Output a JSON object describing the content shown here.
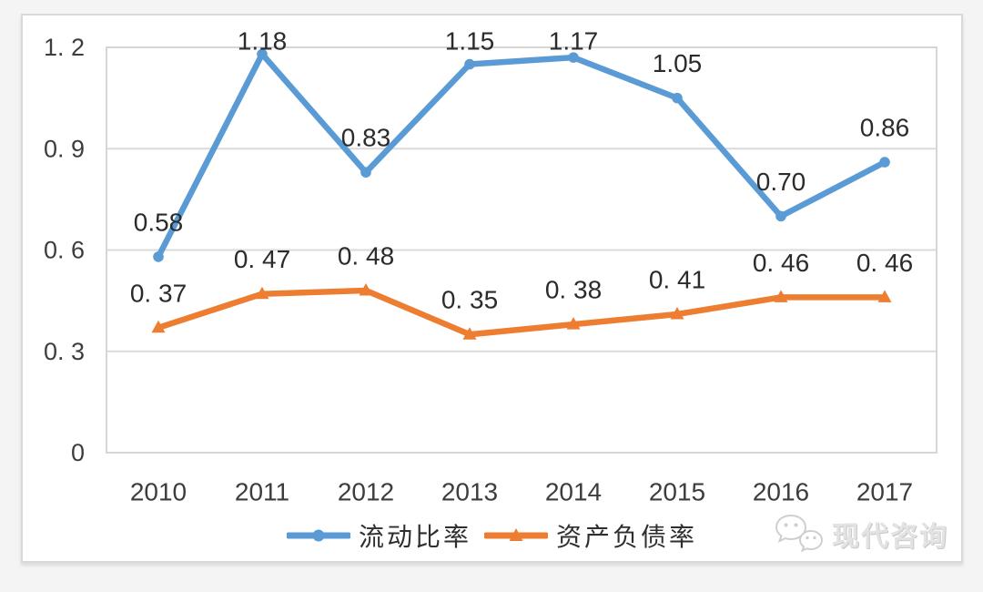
{
  "chart_data": {
    "type": "line",
    "categories": [
      "2010",
      "2011",
      "2012",
      "2013",
      "2014",
      "2015",
      "2016",
      "2017"
    ],
    "series": [
      {
        "name": "流动比率",
        "color": "#5b9bd5",
        "marker": "circle",
        "values": [
          0.58,
          1.18,
          0.83,
          1.15,
          1.17,
          1.05,
          0.7,
          0.86
        ],
        "labels": [
          "0.58",
          "1.18",
          "0.83",
          "1.15",
          "1.17",
          "1.05",
          "0.70",
          "0.86"
        ]
      },
      {
        "name": "资产负债率",
        "color": "#ed7d31",
        "marker": "triangle",
        "values": [
          0.37,
          0.47,
          0.48,
          0.35,
          0.38,
          0.41,
          0.46,
          0.46
        ],
        "labels": [
          "0. 37",
          "0. 47",
          "0. 48",
          "0. 35",
          "0. 38",
          "0. 41",
          "0. 46",
          "0. 46"
        ]
      }
    ],
    "ylim": [
      0,
      1.2
    ],
    "yticks": {
      "values": [
        0,
        0.3,
        0.6,
        0.9,
        1.2
      ],
      "labels": [
        "0",
        "0. 3",
        "0. 6",
        "0. 9",
        "1. 2"
      ]
    },
    "title": "",
    "xlabel": "",
    "ylabel": "",
    "grid": "horizontal",
    "legend_position": "bottom"
  },
  "watermark": {
    "text": "现代咨询",
    "icon": "wechat-icon"
  }
}
